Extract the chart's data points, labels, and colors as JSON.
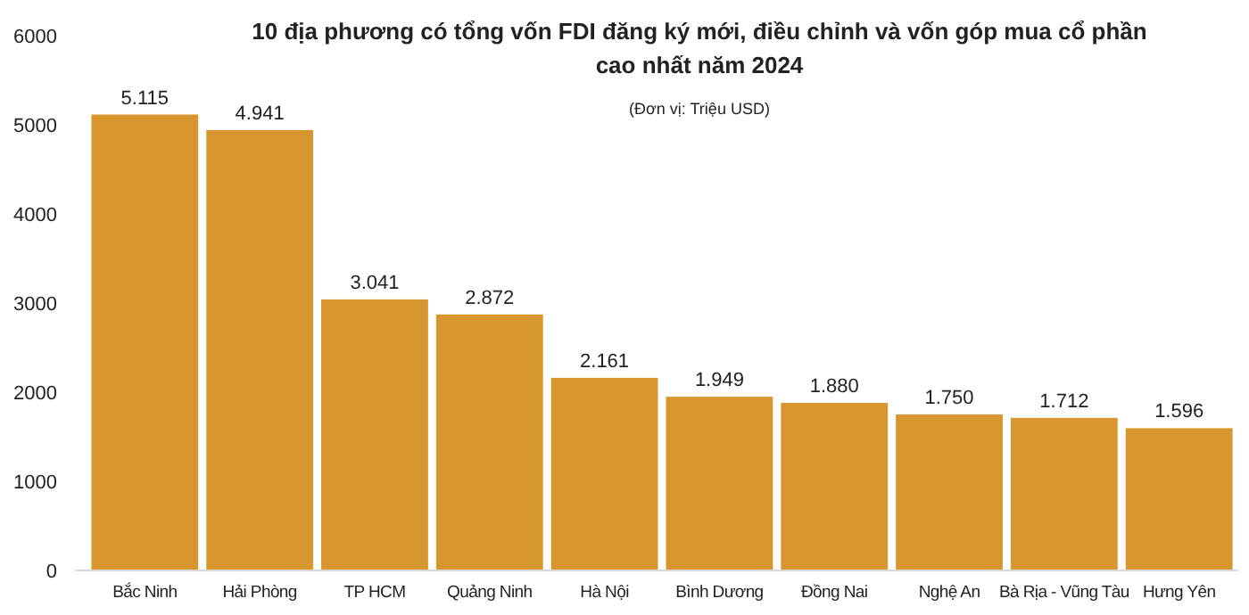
{
  "chart_data": {
    "type": "bar",
    "title": "10 địa phương có tổng vốn FDI đăng ký mới, điều chỉnh và vốn góp mua cổ phần cao nhất năm 2024",
    "subtitle": "(Đơn vị: Triệu USD)",
    "categories": [
      "Bắc Ninh",
      "Hải Phòng",
      "TP HCM",
      "Quảng Ninh",
      "Hà Nội",
      "Bình Dương",
      "Đồng Nai",
      "Nghệ An",
      "Bà Rịa - Vũng Tàu",
      "Hưng Yên"
    ],
    "values": [
      5115,
      4941,
      3041,
      2872,
      2161,
      1949,
      1880,
      1750,
      1712,
      1596
    ],
    "value_labels": [
      "5.115",
      "4.941",
      "3.041",
      "2.872",
      "2.161",
      "1.949",
      "1.880",
      "1.750",
      "1.712",
      "1.596"
    ],
    "color": "#d8962f",
    "ylim": [
      0,
      6000
    ],
    "yticks": [
      0,
      1000,
      2000,
      3000,
      4000,
      5000,
      6000
    ],
    "grid": false
  }
}
